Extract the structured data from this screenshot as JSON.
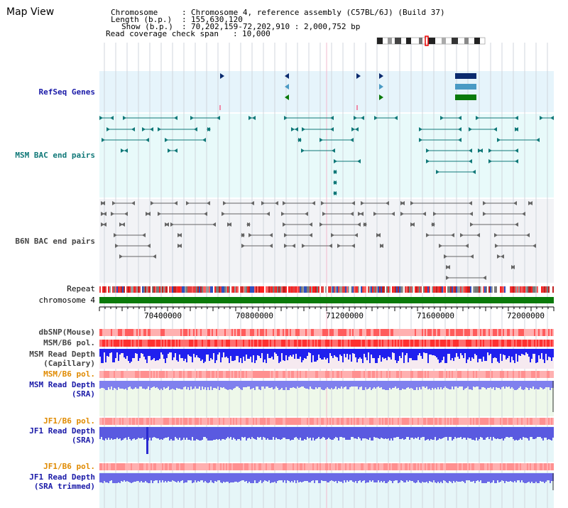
{
  "title": "Map View",
  "info": {
    "chromosome_label": "Chromosome",
    "chromosome_value": "Chromosome 4, reference assembly (C57BL/6J) (Build 37)",
    "length_label": "Length (b.p.)",
    "length_value": "155,630,120",
    "show_label": "Show (b.p.)",
    "show_value": "70,202,159-72,202,910 : 2,000,752 bp",
    "coverage_label": "Read coverage check span",
    "coverage_value": "10,000"
  },
  "tracks": {
    "refseq": "RefSeq Genes",
    "msm_bac": "MSM BAC end pairs",
    "b6n_bac": "B6N BAC end pairs",
    "repeat": "Repeat",
    "chromosome": "chromosome 4",
    "dbsnp": "dbSNP(Mouse)",
    "msm_b6_pol_1": "MSM/B6 pol.",
    "msm_depth_cap_1": "MSM Read Depth",
    "msm_depth_cap_2": "(Capillary)",
    "msm_b6_pol_2": "MSM/B6 pol.",
    "msm_depth_sra_1": "MSM Read Depth",
    "msm_depth_sra_2": "(SRA)",
    "jf1_b6_pol_1": "JF1/B6 pol.",
    "jf1_depth_sra_1": "JF1 Read Depth",
    "jf1_depth_sra_2": "(SRA)",
    "jf1_b6_pol_2": "JF1/B6 pol.",
    "jf1_depth_trim_1": "JF1 Read Depth",
    "jf1_depth_trim_2": "(SRA trimmed)"
  },
  "axis": {
    "ticks": [
      "70400000",
      "70800000",
      "71200000",
      "71600000",
      "72000000"
    ]
  },
  "colors": {
    "refseq_bg": "#e6f4fb",
    "msm_bac_bg": "#e8fafa",
    "b6n_bac_bg": "#f2f3f6",
    "chromosome_bar": "#0a7a0a",
    "msm_feature": "#107878",
    "b6n_feature": "#666666",
    "gene_dark": "#0a2a6e",
    "gene_mid": "#4a9ac4",
    "gene_green": "#0a7a0a",
    "depth_dark_blue": "#2020ee",
    "depth_light_blue": "#8080ee",
    "pol_red": "#ff3030",
    "pol_pink": "#ffb0b0"
  }
}
